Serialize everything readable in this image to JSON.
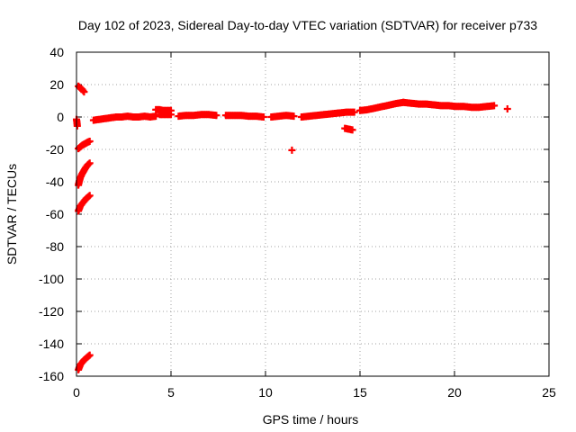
{
  "chart_data": {
    "type": "scatter",
    "title": "Day 102 of 2023, Sidereal Day-to-day VTEC variation (SDTVAR) for receiver p733",
    "xlabel": "GPS time / hours",
    "ylabel": "SDTVAR / TECUs",
    "xlim": [
      0,
      25
    ],
    "ylim": [
      -160,
      40
    ],
    "xticks": [
      0,
      5,
      10,
      15,
      20,
      25
    ],
    "yticks": [
      40,
      20,
      0,
      -20,
      -40,
      -60,
      -80,
      -100,
      -120,
      -140,
      -160
    ],
    "grid": true,
    "marker": "plus",
    "series": [
      {
        "name": "SDTVAR",
        "color": "#ff0000",
        "segments": [
          {
            "x": [
              0.0,
              0.02,
              0.04
            ],
            "y": [
              -1.5,
              -3.0,
              -5.5
            ]
          },
          {
            "x": [
              0.1,
              0.2,
              0.3,
              0.4
            ],
            "y": [
              19.0,
              18.0,
              17.0,
              15.5
            ]
          },
          {
            "x": [
              0.1,
              0.2,
              0.3,
              0.45,
              0.6,
              0.7
            ],
            "y": [
              -19.5,
              -18.5,
              -17.5,
              -16.5,
              -15.5,
              -15.0
            ]
          },
          {
            "x": [
              0.1,
              0.15,
              0.2,
              0.3,
              0.4,
              0.5,
              0.6,
              0.7
            ],
            "y": [
              -42.0,
              -39.5,
              -37.5,
              -35.0,
              -33.0,
              -31.0,
              -29.5,
              -28.5
            ]
          },
          {
            "x": [
              0.1,
              0.15,
              0.2,
              0.3,
              0.4,
              0.5,
              0.6,
              0.7
            ],
            "y": [
              -58.0,
              -56.5,
              -55.0,
              -53.5,
              -52.0,
              -50.5,
              -49.5,
              -48.5
            ]
          },
          {
            "x": [
              0.1,
              0.15,
              0.2,
              0.3,
              0.4,
              0.5,
              0.6,
              0.7
            ],
            "y": [
              -156.0,
              -154.5,
              -153.0,
              -151.5,
              -150.0,
              -149.0,
              -148.0,
              -147.0
            ]
          },
          {
            "x": [
              0.9,
              1.2,
              1.5,
              1.8,
              2.1,
              2.4,
              2.7,
              3.0,
              3.3,
              3.6,
              3.9,
              4.2
            ],
            "y": [
              -2.0,
              -1.5,
              -1.0,
              -0.5,
              0.0,
              0.0,
              0.5,
              0.0,
              0.0,
              0.5,
              0.0,
              0.5
            ]
          },
          {
            "x": [
              4.2,
              4.4,
              4.6,
              4.8,
              5.0
            ],
            "y": [
              4.5,
              4.5,
              4.0,
              4.0,
              4.0
            ]
          },
          {
            "x": [
              4.4,
              4.6,
              4.8,
              5.0
            ],
            "y": [
              1.5,
              1.5,
              1.5,
              1.5
            ]
          },
          {
            "x": [
              5.4,
              5.8,
              6.2,
              6.6,
              7.0,
              7.4
            ],
            "y": [
              0.5,
              1.0,
              1.0,
              1.5,
              1.5,
              1.0
            ]
          },
          {
            "x": [
              7.9,
              8.3,
              8.7,
              9.1,
              9.5,
              9.9
            ],
            "y": [
              1.0,
              1.0,
              1.0,
              0.5,
              0.5,
              0.0
            ]
          },
          {
            "x": [
              10.3,
              10.7,
              11.1,
              11.5
            ],
            "y": [
              0.0,
              0.5,
              1.0,
              0.5
            ]
          },
          {
            "x": [
              11.4
            ],
            "y": [
              -20.5
            ]
          },
          {
            "x": [
              11.9,
              12.3,
              12.7,
              13.1,
              13.5,
              13.9,
              14.3,
              14.7
            ],
            "y": [
              0.0,
              0.5,
              1.0,
              1.5,
              2.0,
              2.5,
              3.0,
              3.0
            ]
          },
          {
            "x": [
              14.2,
              14.4,
              14.6
            ],
            "y": [
              -7.0,
              -7.5,
              -8.0
            ]
          },
          {
            "x": [
              15.0,
              15.4,
              15.8,
              16.2,
              16.6,
              17.0,
              17.3
            ],
            "y": [
              4.0,
              4.5,
              5.5,
              6.5,
              7.5,
              8.5,
              9.0
            ]
          },
          {
            "x": [
              17.3,
              17.7,
              18.1,
              18.5,
              18.9,
              19.3,
              19.7,
              20.1,
              20.5,
              20.9,
              21.3,
              21.7,
              22.1
            ],
            "y": [
              9.0,
              8.5,
              8.0,
              8.0,
              7.5,
              7.0,
              7.0,
              6.5,
              6.5,
              6.0,
              6.0,
              6.5,
              7.0
            ]
          },
          {
            "x": [
              22.8
            ],
            "y": [
              5.0
            ]
          }
        ]
      }
    ]
  }
}
